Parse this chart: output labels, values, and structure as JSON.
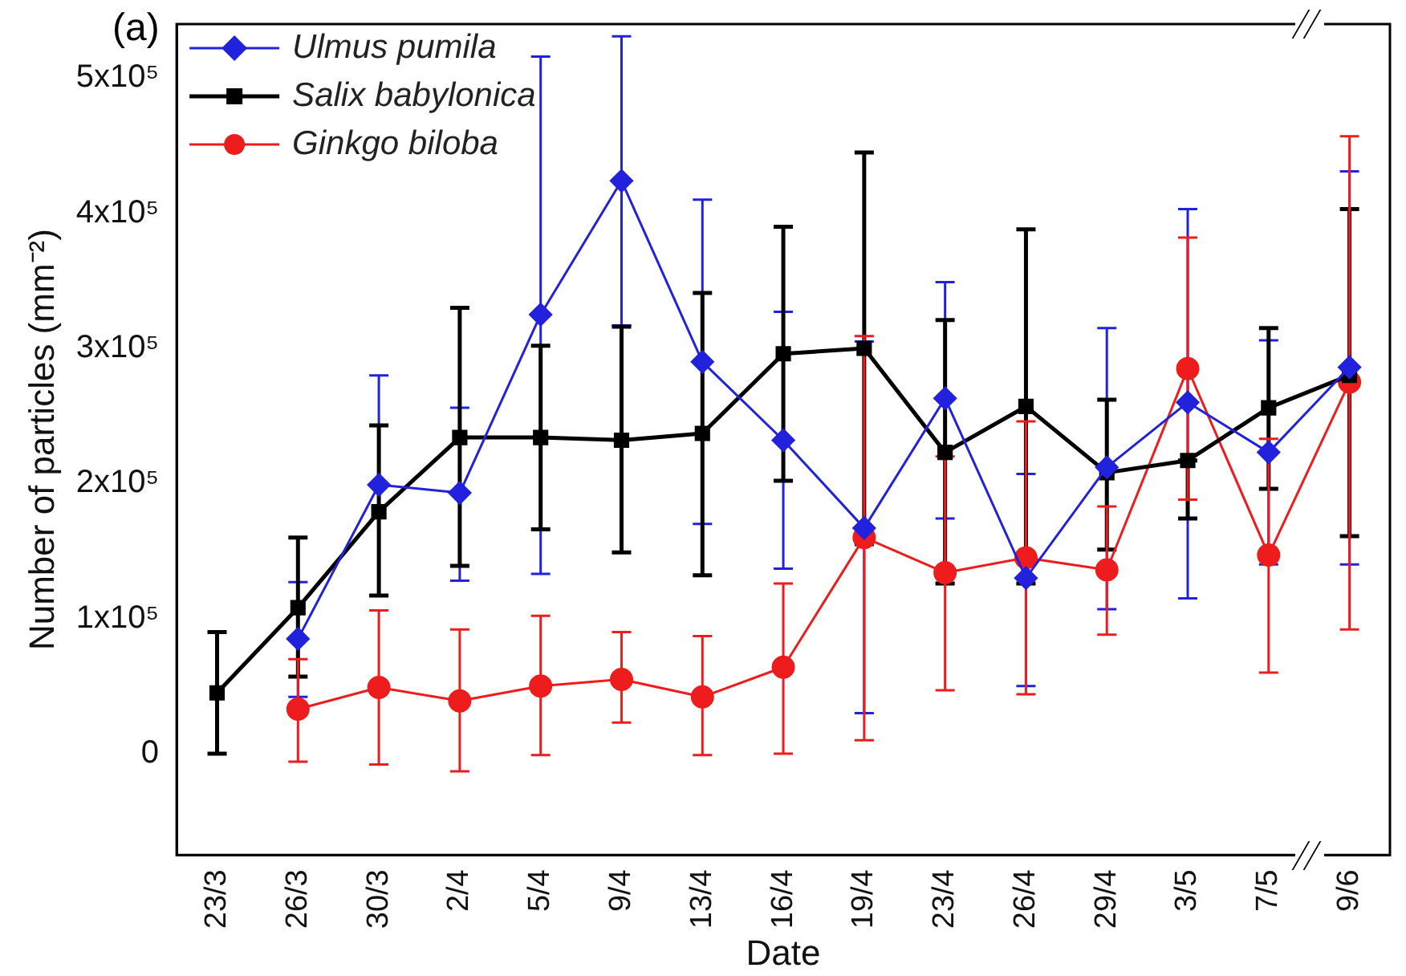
{
  "chart_data": {
    "type": "line",
    "xlabel": "Date",
    "ylabel": "Number of particles (mm⁻²)",
    "categories": [
      "23/3",
      "26/3",
      "30/3",
      "2/4",
      "5/4",
      "9/4",
      "13/4",
      "16/4",
      "19/4",
      "23/4",
      "26/4",
      "29/4",
      "3/5",
      "7/5",
      "9/6"
    ],
    "ylim": [
      -75000,
      540000
    ],
    "yticks": [
      0,
      {
        "value": 100000,
        "label": "1x10⁵"
      },
      {
        "value": 200000,
        "label": "2x10⁵"
      },
      {
        "value": 300000,
        "label": "3x10⁵"
      },
      {
        "value": 400000,
        "label": "4x10⁵"
      },
      {
        "value": 500000,
        "label": "5x10⁵"
      }
    ],
    "grid": false,
    "legend": "top left",
    "annotations": [
      "(a)"
    ],
    "series": [
      {
        "name": "Ulmus pumila",
        "color": "#2222dd",
        "marker": "diamond",
        "values": [
          null,
          85000,
          199000,
          193000,
          325000,
          424000,
          290000,
          232000,
          167000,
          263000,
          130000,
          212000,
          260000,
          223000,
          286000
        ],
        "errors": [
          null,
          [
            42000,
            127000
          ],
          [
            117000,
            280000
          ],
          [
            128000,
            256000
          ],
          [
            133000,
            516000
          ],
          [
            317000,
            531000
          ],
          [
            170000,
            410000
          ],
          [
            137000,
            327000
          ],
          [
            30000,
            305000
          ],
          [
            174000,
            349000
          ],
          [
            50000,
            207000
          ],
          [
            107000,
            315000
          ],
          [
            115000,
            403000
          ],
          [
            140000,
            306000
          ],
          [
            140000,
            431000
          ]
        ]
      },
      {
        "name": "Salix babylonica",
        "color": "#000000",
        "marker": "square",
        "values": [
          45000,
          108000,
          179000,
          234000,
          234000,
          232000,
          237000,
          296000,
          300000,
          223000,
          257000,
          208000,
          217000,
          256000,
          280000
        ],
        "errors": [
          [
            0,
            90000
          ],
          [
            57000,
            160000
          ],
          [
            117000,
            243000
          ],
          [
            139000,
            330000
          ],
          [
            166000,
            302000
          ],
          [
            149000,
            316000
          ],
          [
            132000,
            341000
          ],
          [
            202000,
            390000
          ],
          [
            155000,
            445000
          ],
          [
            126000,
            321000
          ],
          [
            126000,
            388000
          ],
          [
            151000,
            262000
          ],
          [
            174000,
            217000
          ],
          [
            196000,
            315000
          ],
          [
            161000,
            403000
          ]
        ]
      },
      {
        "name": "Ginkgo biloba",
        "color": "#ee1c1c",
        "marker": "circle",
        "values": [
          null,
          33000,
          49000,
          39000,
          50000,
          55000,
          42000,
          64000,
          160000,
          134000,
          145000,
          136000,
          285000,
          147000,
          275000
        ],
        "errors": [
          null,
          [
            -6000,
            70000
          ],
          [
            -8000,
            106000
          ],
          [
            -13000,
            92000
          ],
          [
            -1000,
            102000
          ],
          [
            23000,
            90000
          ],
          [
            -1000,
            87000
          ],
          [
            0,
            126000
          ],
          [
            10000,
            309000
          ],
          [
            47000,
            220000
          ],
          [
            44000,
            246000
          ],
          [
            88000,
            183000
          ],
          [
            188000,
            382000
          ],
          [
            60000,
            233000
          ],
          [
            92000,
            457000
          ]
        ]
      }
    ]
  }
}
